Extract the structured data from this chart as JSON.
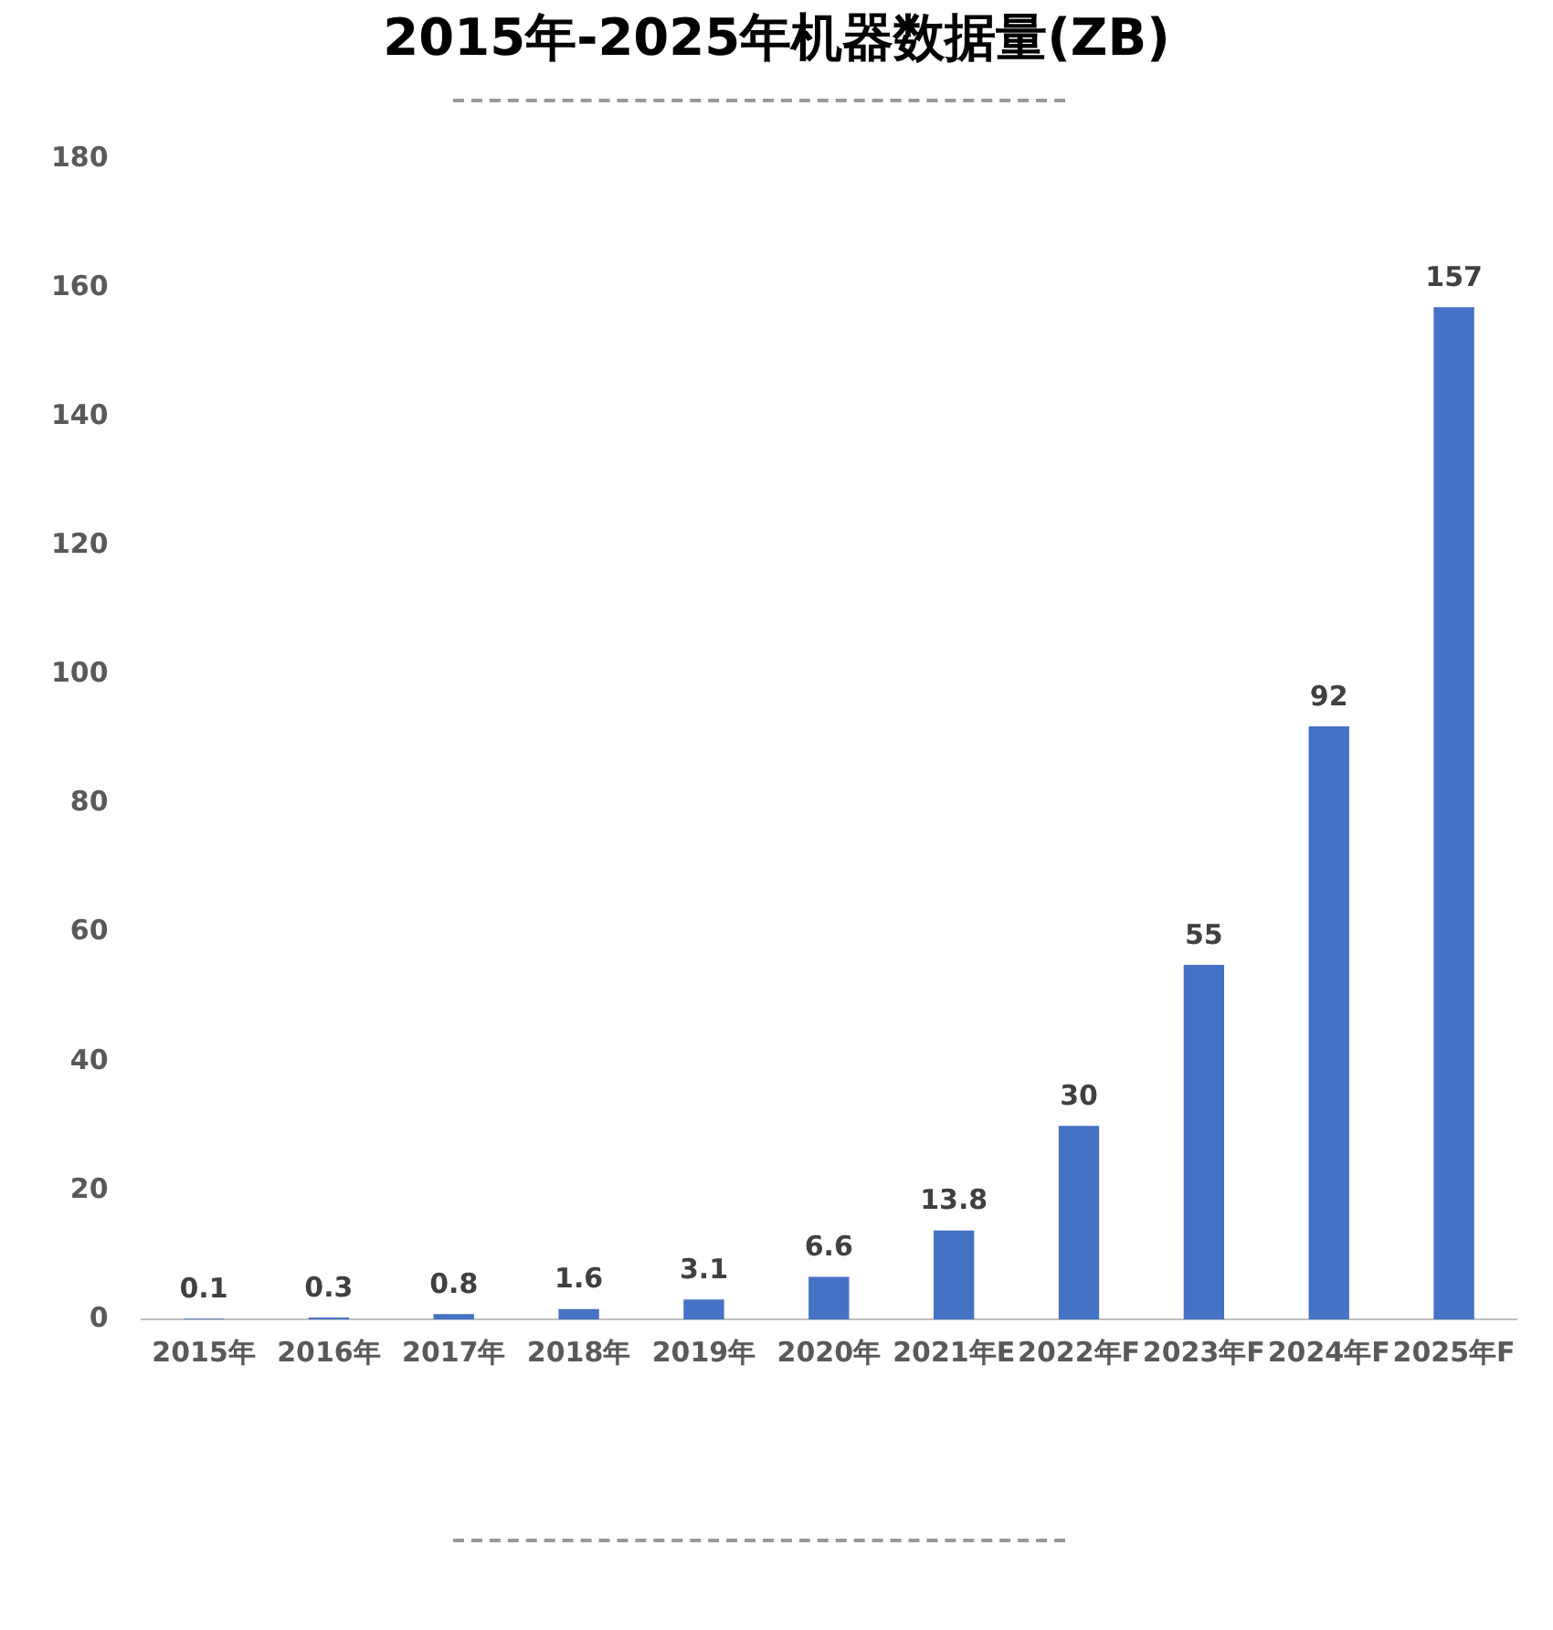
{
  "chart_data": {
    "type": "bar",
    "title": "2015年-2025年机器数据量(ZB)",
    "categories": [
      "2015年",
      "2016年",
      "2017年",
      "2018年",
      "2019年",
      "2020年",
      "2021年E",
      "2022年F",
      "2023年F",
      "2024年F",
      "2025年F"
    ],
    "values": [
      0.1,
      0.3,
      0.8,
      1.6,
      3.1,
      6.6,
      13.8,
      30,
      55,
      92,
      157
    ],
    "color": "#4472c4",
    "ylim": [
      0,
      180
    ],
    "yticks": [
      0,
      20,
      40,
      60,
      80,
      100,
      120,
      140,
      160,
      180
    ],
    "grid": false,
    "legend": false,
    "data_labels": true
  }
}
